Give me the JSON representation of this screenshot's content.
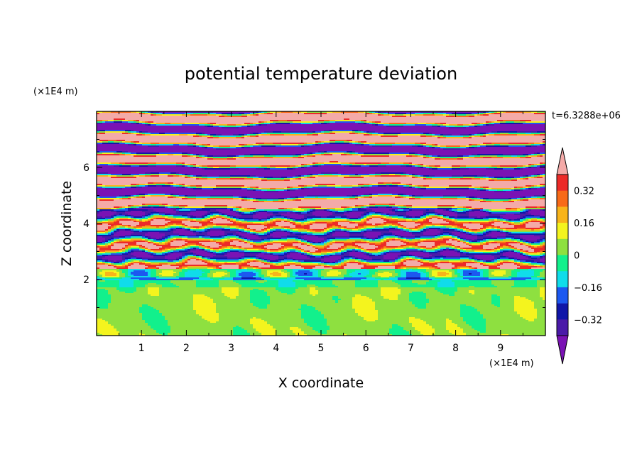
{
  "chart_data": {
    "type": "heatmap",
    "title": "potential temperature deviation",
    "time_label": "t=6.3288e+06",
    "xlabel": "X coordinate",
    "ylabel": "Z coordinate",
    "x_unit": "(×1E4 m)",
    "y_unit": "(×1E4 m)",
    "x_range": [
      0,
      10
    ],
    "y_range": [
      0,
      8
    ],
    "x_ticks": [
      "1",
      "2",
      "3",
      "4",
      "5",
      "6",
      "7",
      "8",
      "9"
    ],
    "y_ticks": [
      "2",
      "4",
      "6"
    ],
    "colorbar": {
      "levels": [
        {
          "min": null,
          "max": -0.4,
          "color": "#7a12b4"
        },
        {
          "min": -0.4,
          "max": -0.32,
          "color": "#4a1aa8"
        },
        {
          "min": -0.32,
          "max": -0.24,
          "color": "#1016a8"
        },
        {
          "min": -0.24,
          "max": -0.16,
          "color": "#1c58f0"
        },
        {
          "min": -0.16,
          "max": -0.08,
          "color": "#10dcea"
        },
        {
          "min": -0.08,
          "max": 0,
          "color": "#12f08c"
        },
        {
          "min": 0,
          "max": 0.08,
          "color": "#8ee040"
        },
        {
          "min": 0.08,
          "max": 0.16,
          "color": "#f4f41e"
        },
        {
          "min": 0.16,
          "max": 0.24,
          "color": "#f8b41a"
        },
        {
          "min": 0.24,
          "max": 0.32,
          "color": "#f86a18"
        },
        {
          "min": 0.32,
          "max": 0.4,
          "color": "#ec2a28"
        },
        {
          "min": 0.4,
          "max": null,
          "color": "#f4aaa8"
        }
      ],
      "tick_labels": [
        "0.32",
        "0.16",
        "0",
        "−0.16",
        "−0.32"
      ]
    }
  }
}
